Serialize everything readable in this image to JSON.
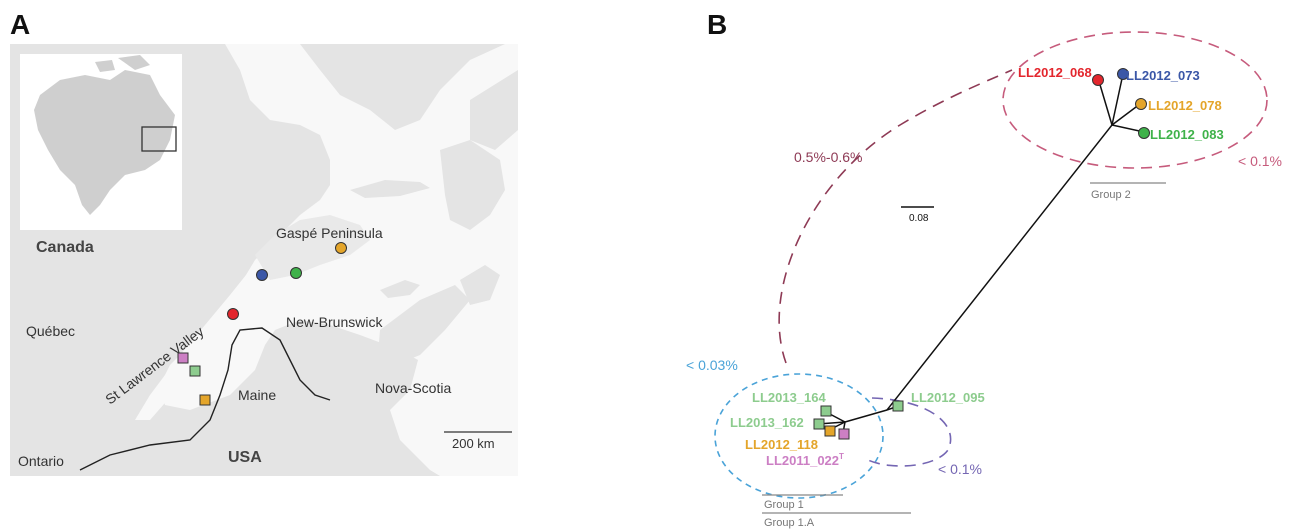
{
  "panel_a": {
    "letter": "A",
    "labels": {
      "canada": "Canada",
      "usa": "USA",
      "quebec": "Québec",
      "ontario": "Ontario",
      "maine": "Maine",
      "new_brunswick": "New-Brunswick",
      "nova_scotia": "Nova-Scotia",
      "gaspe": "Gaspé Peninsula",
      "st_lawrence": "St Lawrence Valley"
    },
    "scale_bar": "200 km"
  },
  "panel_b": {
    "letter": "B",
    "scale_bar": "0.08",
    "strains": {
      "s068": "LL2012_068",
      "s073": "LL2012_073",
      "s078": "LL2012_078",
      "s083": "LL2012_083",
      "s095": "LL2012_095",
      "s164": "LL2013_164",
      "s162": "LL2013_162",
      "s118": "LL2012_118",
      "s022": "LL2011_022",
      "s022_sup": "T"
    },
    "annotations": {
      "between_groups": "0.5%-0.6%",
      "group2_within": "< 0.1%",
      "group1_within": "< 0.03%",
      "group1a_within": "< 0.1%"
    },
    "groups": {
      "group2": "Group 2",
      "group1": "Group 1",
      "group1a": "Group 1.A"
    }
  },
  "colors": {
    "red": "#e3262d",
    "blue": "#3b57a7",
    "orange": "#e4a52a",
    "green": "#3fb24a",
    "lightgreen": "#8dcc8e",
    "pink": "#cc7fc4",
    "land": "#e6e6e6",
    "darkred_dash": "#8e3a55",
    "pink_dash": "#c65b7c",
    "blue_dash": "#4aa3d8",
    "purple_dash": "#7466b3"
  }
}
